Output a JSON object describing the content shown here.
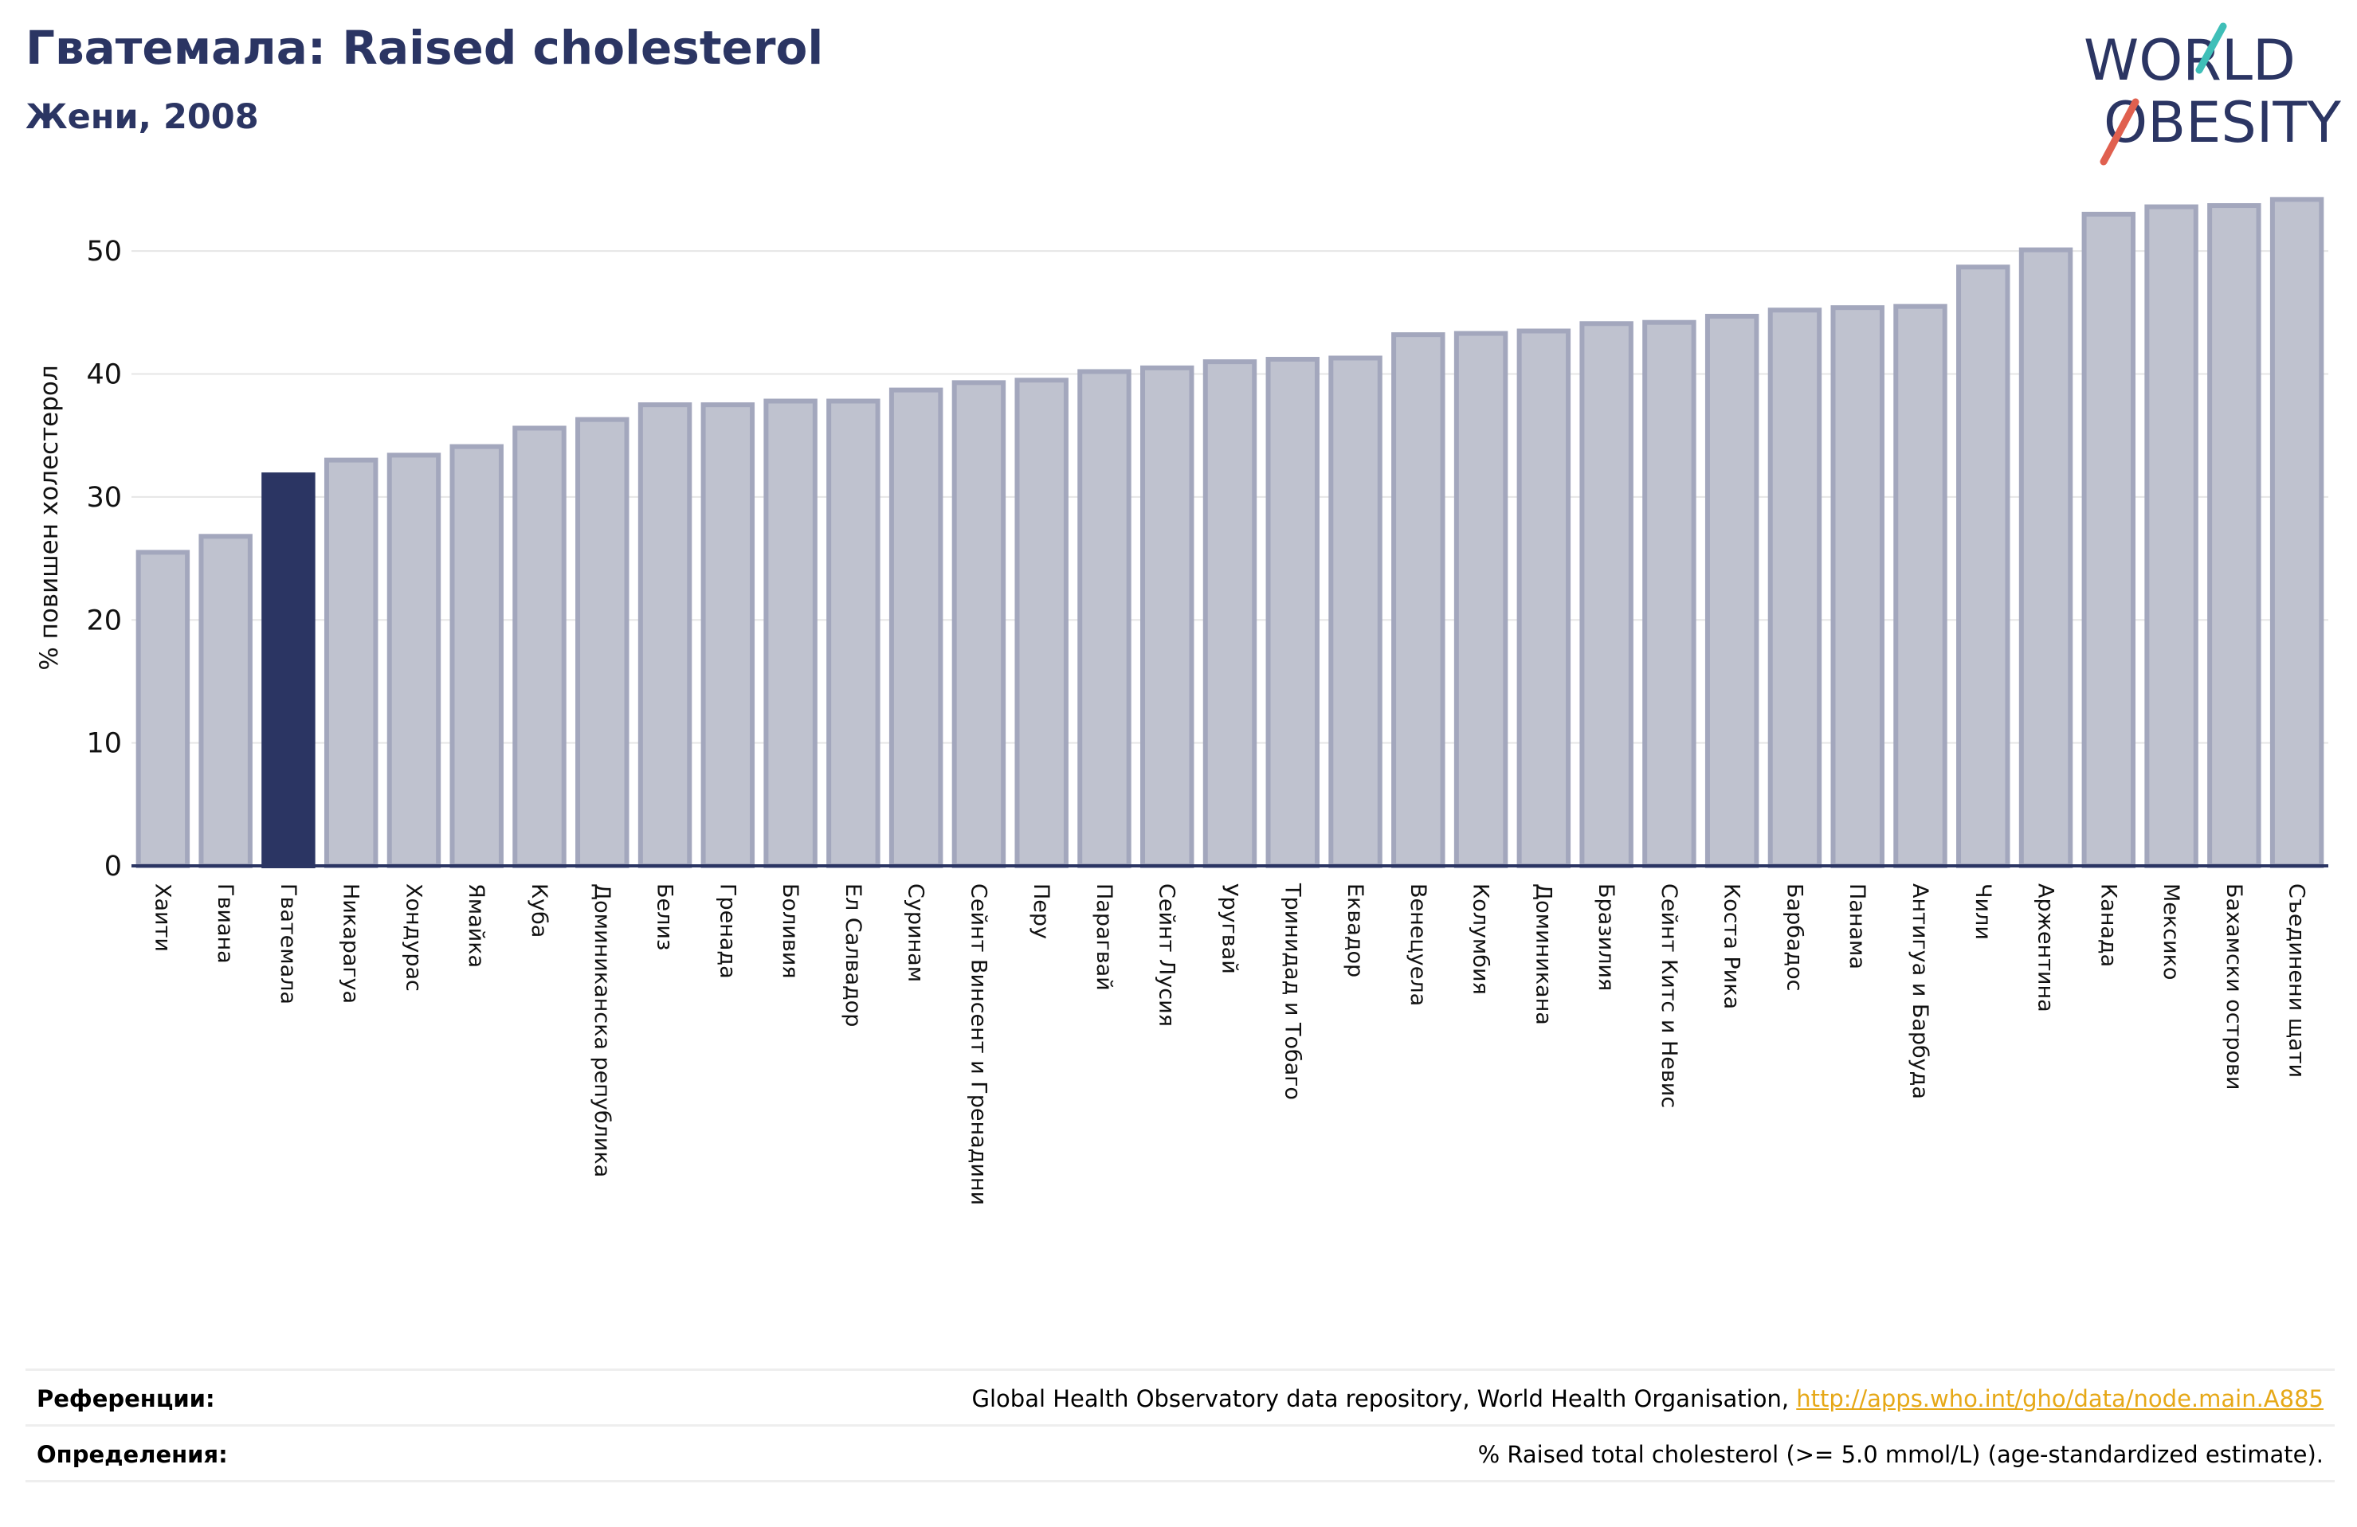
{
  "header": {
    "title": "Гватемала: Raised cholesterol",
    "subtitle": "Жени, 2008"
  },
  "logo": {
    "line1": "WORLD",
    "line2": "OBESITY",
    "accent_color": "#e0604f",
    "accent_color_2": "#3fbfb8"
  },
  "colors": {
    "highlight": "#2b3563",
    "bar_fill": "#bfc2cf",
    "bar_stroke": "#a3a7bd",
    "text": "#2b3563"
  },
  "chart_data": {
    "type": "bar",
    "ylabel": "% повишен холестерол",
    "ylim": [
      0,
      55
    ],
    "yticks": [
      0,
      10,
      20,
      30,
      40,
      50
    ],
    "grid": true,
    "highlight": "Гватемала",
    "categories": [
      "Хаити",
      "Гвиана",
      "Гватемала",
      "Никарагуа",
      "Хондурас",
      "Ямайка",
      "Куба",
      "Доминиканска република",
      "Белиз",
      "Гренада",
      "Боливия",
      "Ел Салвадор",
      "Суринам",
      "Сейнт Винсент и Гренадини",
      "Перу",
      "Парагвай",
      "Сейнт Лусия",
      "Уругвай",
      "Тринидад и Тобаго",
      "Еквадор",
      "Венецуела",
      "Колумбия",
      "Доминикана",
      "Бразилия",
      "Сейнт Китс и Невис",
      "Коста Рика",
      "Барбадос",
      "Панама",
      "Антигуа и Барбуда",
      "Чили",
      "Аржентина",
      "Канада",
      "Мексико",
      "Бахамски острови",
      "Съединени щати"
    ],
    "values": [
      25.5,
      26.8,
      31.8,
      33.0,
      33.4,
      34.1,
      35.6,
      36.3,
      37.5,
      37.5,
      37.8,
      37.8,
      38.7,
      39.3,
      39.5,
      40.2,
      40.5,
      41.0,
      41.2,
      41.3,
      43.2,
      43.3,
      43.5,
      44.1,
      44.2,
      44.7,
      45.2,
      45.4,
      45.5,
      48.7,
      50.1,
      53.0,
      53.6,
      53.7,
      54.2
    ]
  },
  "footer": {
    "references_label": "Референции:",
    "references_text": "Global Health Observatory data repository, World Health Organisation, ",
    "references_link": "http://apps.who.int/gho/data/node.main.A885",
    "definitions_label": "Определения:",
    "definitions_text": "% Raised total cholesterol (>= 5.0 mmol/L) (age-standardized estimate)."
  }
}
